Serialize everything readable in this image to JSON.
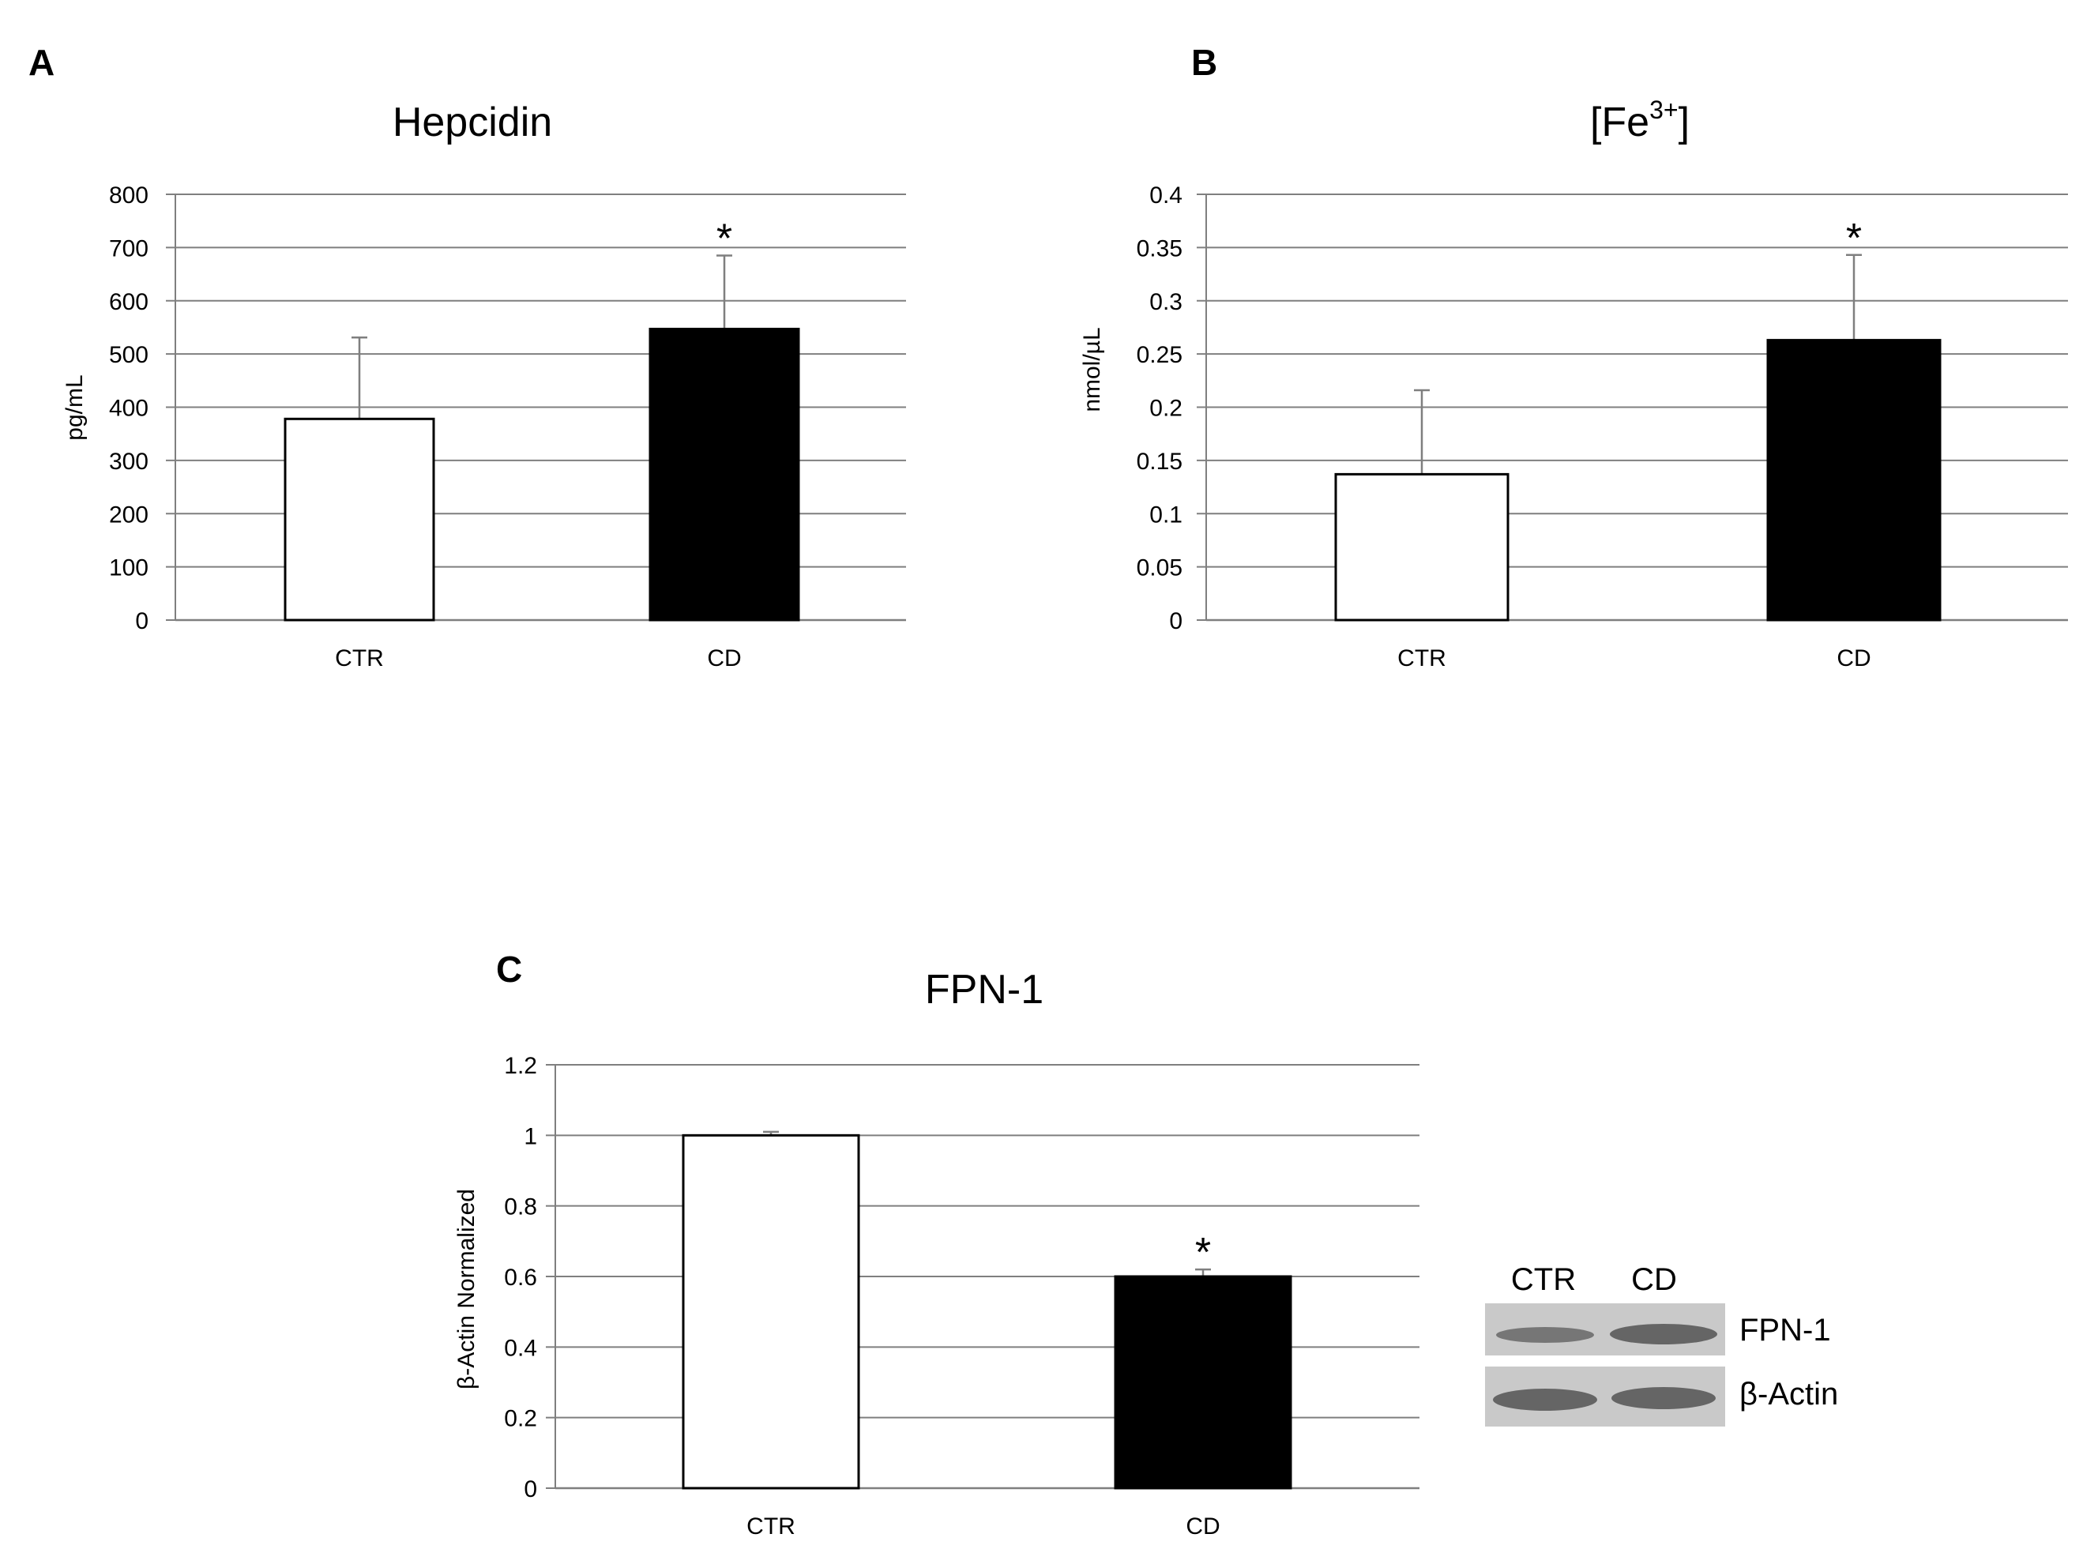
{
  "chart_data": [
    {
      "panel": "A",
      "type": "bar",
      "title": "Hepcidin",
      "title_base": "Hepcidin",
      "title_sup": "",
      "title_tail": "",
      "xlabel": "",
      "ylabel": "pg/mL",
      "categories": [
        "CTR",
        "CD"
      ],
      "values": [
        378,
        547
      ],
      "errors": [
        153,
        138
      ],
      "significance": [
        "",
        "*"
      ],
      "bar_colors": [
        "#ffffff",
        "#000000"
      ],
      "ylim": [
        0,
        800
      ],
      "yticks": [
        0,
        100,
        200,
        300,
        400,
        500,
        600,
        700,
        800
      ],
      "ytick_labels": [
        "0",
        "100",
        "200",
        "300",
        "400",
        "500",
        "600",
        "700",
        "800"
      ],
      "grid": true
    },
    {
      "panel": "B",
      "type": "bar",
      "title": "[Fe3+]",
      "title_base": "[Fe",
      "title_sup": "3+",
      "title_tail": "]",
      "xlabel": "",
      "ylabel": "nmol/µL",
      "categories": [
        "CTR",
        "CD"
      ],
      "values": [
        0.137,
        0.263
      ],
      "errors": [
        0.079,
        0.08
      ],
      "significance": [
        "",
        "*"
      ],
      "bar_colors": [
        "#ffffff",
        "#000000"
      ],
      "ylim": [
        0,
        0.4
      ],
      "yticks": [
        0,
        0.05,
        0.1,
        0.15,
        0.2,
        0.25,
        0.3,
        0.35,
        0.4
      ],
      "ytick_labels": [
        "0",
        "0.05",
        "0.1",
        "0.15",
        "0.2",
        "0.25",
        "0.3",
        "0.35",
        "0.4"
      ],
      "grid": true
    },
    {
      "panel": "C",
      "type": "bar",
      "title": "FPN-1",
      "title_base": "FPN-1",
      "title_sup": "",
      "title_tail": "",
      "xlabel": "",
      "ylabel": "β-Actin Normalized",
      "categories": [
        "CTR",
        "CD"
      ],
      "values": [
        1.0,
        0.6
      ],
      "errors": [
        0.01,
        0.02
      ],
      "significance": [
        "",
        "*"
      ],
      "bar_colors": [
        "#ffffff",
        "#000000"
      ],
      "ylim": [
        0,
        1.2
      ],
      "yticks": [
        0,
        0.2,
        0.4,
        0.6,
        0.8,
        1.0,
        1.2
      ],
      "ytick_labels": [
        "0",
        "0.2",
        "0.4",
        "0.6",
        "0.8",
        "1",
        "1.2"
      ],
      "grid": true
    }
  ],
  "western_blot": {
    "lane_labels": [
      "CTR",
      "CD"
    ],
    "row_labels": [
      "FPN-1",
      "β-Actin"
    ]
  },
  "colors": {
    "gridline": "#7f7f7f",
    "axis": "#7f7f7f",
    "bar_outline": "#000000",
    "error_bar": "#7f7f7f",
    "blot_background": "#c9c9c9",
    "blot_band": "#5a5a5a"
  }
}
